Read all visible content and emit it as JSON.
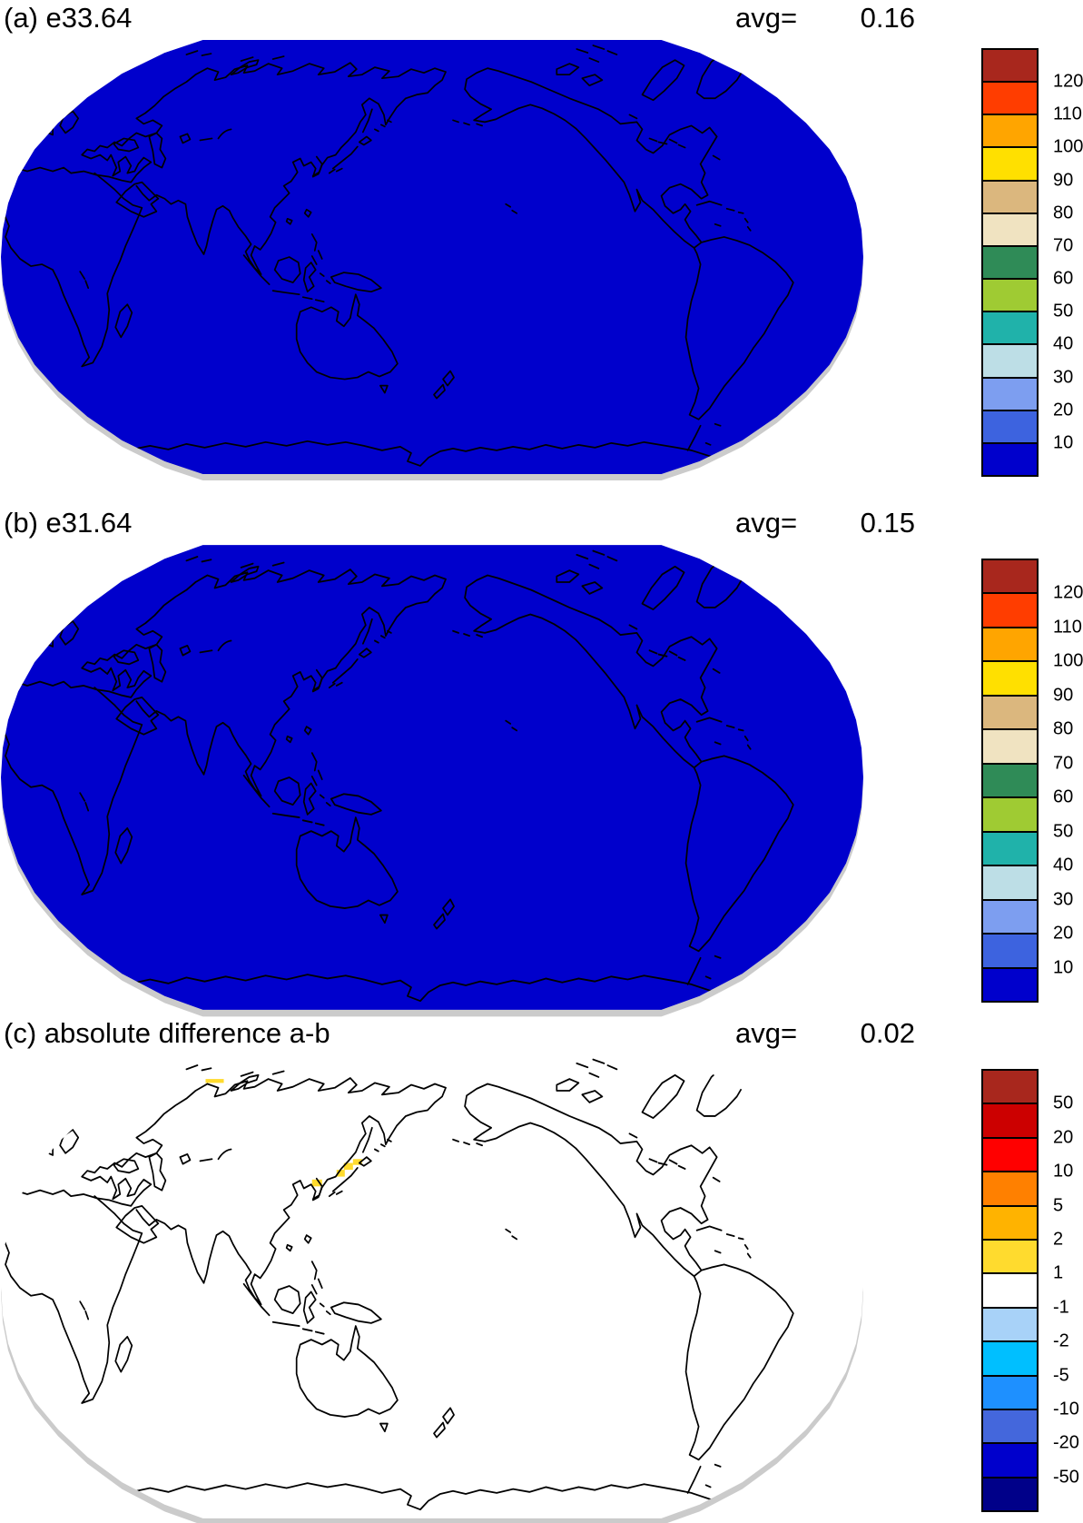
{
  "figure": {
    "panels": [
      {
        "id": "a",
        "title": "(a) e33.64",
        "avg_label": "avg=",
        "avg_value": "0.16",
        "map_fill": "#0000CC",
        "colorbar": {
          "labels": [
            "120",
            "110",
            "100",
            "90",
            "80",
            "70",
            "60",
            "50",
            "40",
            "30",
            "20",
            "10"
          ],
          "colors": [
            "#A8271D",
            "#FF3D00",
            "#FFA500",
            "#FFE000",
            "#DBB77E",
            "#F0E3C1",
            "#2F8B57",
            "#9FCB33",
            "#20B2AA",
            "#BDDEE6",
            "#7D9EF0",
            "#3D63DF",
            "#0000CC"
          ]
        }
      },
      {
        "id": "b",
        "title": "(b) e31.64",
        "avg_label": "avg=",
        "avg_value": "0.15",
        "map_fill": "#0000CC",
        "colorbar": {
          "labels": [
            "120",
            "110",
            "100",
            "90",
            "80",
            "70",
            "60",
            "50",
            "40",
            "30",
            "20",
            "10"
          ],
          "colors": [
            "#A8271D",
            "#FF3D00",
            "#FFA500",
            "#FFE000",
            "#DBB77E",
            "#F0E3C1",
            "#2F8B57",
            "#9FCB33",
            "#20B2AA",
            "#BDDEE6",
            "#7D9EF0",
            "#3D63DF",
            "#0000CC"
          ]
        }
      },
      {
        "id": "c",
        "title": "(c) absolute difference a-b",
        "avg_label": "avg=",
        "avg_value": "0.02",
        "map_fill": "#FFFFFF",
        "anomaly_color": "#FFDB2E",
        "colorbar": {
          "labels": [
            "50",
            "20",
            "10",
            "5",
            "2",
            "1",
            "-1",
            "-2",
            "-5",
            "-10",
            "-20",
            "-50"
          ],
          "colors": [
            "#A8271D",
            "#CC0000",
            "#FF0000",
            "#FF8000",
            "#FFB300",
            "#FFDB2E",
            "#FFFFFF",
            "#A8D2F8",
            "#00BFFF",
            "#1E90FF",
            "#4467DC",
            "#0000CC",
            "#000089"
          ]
        }
      }
    ]
  },
  "chart_data": [
    {
      "type": "heatmap",
      "subtype": "global-map-robinson-projection",
      "title": "(a) e33.64",
      "avg": 0.16,
      "field_summary": "uniform field, all grid cells in lowest bin (< 10), shown dark blue with black coastlines",
      "colorbar_levels": [
        10,
        20,
        30,
        40,
        50,
        60,
        70,
        80,
        90,
        100,
        110,
        120
      ],
      "colorbar_colors_top_to_bottom": [
        "#A8271D",
        "#FF3D00",
        "#FFA500",
        "#FFE000",
        "#DBB77E",
        "#F0E3C1",
        "#2F8B57",
        "#9FCB33",
        "#20B2AA",
        "#BDDEE6",
        "#7D9EF0",
        "#3D63DF",
        "#0000CC"
      ],
      "legend_position": "right"
    },
    {
      "type": "heatmap",
      "subtype": "global-map-robinson-projection",
      "title": "(b) e31.64",
      "avg": 0.15,
      "field_summary": "uniform field, all grid cells in lowest bin (< 10), shown dark blue with black coastlines",
      "colorbar_levels": [
        10,
        20,
        30,
        40,
        50,
        60,
        70,
        80,
        90,
        100,
        110,
        120
      ],
      "colorbar_colors_top_to_bottom": [
        "#A8271D",
        "#FF3D00",
        "#FFA500",
        "#FFE000",
        "#DBB77E",
        "#F0E3C1",
        "#2F8B57",
        "#9FCB33",
        "#20B2AA",
        "#BDDEE6",
        "#7D9EF0",
        "#3D63DF",
        "#0000CC"
      ],
      "legend_position": "right"
    },
    {
      "type": "heatmap",
      "subtype": "global-map-robinson-projection-difference",
      "title": "(c) absolute difference a-b",
      "avg": 0.02,
      "field_summary": "difference field mostly in -1 to 1 bin (white) over the whole globe",
      "anomalies": [
        {
          "region": "Siberian Arctic coast",
          "value_bin": "1 to 2",
          "color": "#FFDB2E"
        },
        {
          "region": "Sea of Japan northwest of Honshu",
          "value_bin": "1 to 2",
          "color": "#FFDB2E"
        },
        {
          "region": "Korean east coast",
          "value_bin": "1 to 2",
          "color": "#FFDB2E"
        }
      ],
      "colorbar_levels": [
        -50,
        -20,
        -10,
        -5,
        -2,
        -1,
        1,
        2,
        5,
        10,
        20,
        50
      ],
      "colorbar_colors_top_to_bottom": [
        "#A8271D",
        "#CC0000",
        "#FF0000",
        "#FF8000",
        "#FFB300",
        "#FFDB2E",
        "#FFFFFF",
        "#A8D2F8",
        "#00BFFF",
        "#1E90FF",
        "#4467DC",
        "#0000CC",
        "#000089"
      ],
      "legend_position": "right"
    }
  ]
}
